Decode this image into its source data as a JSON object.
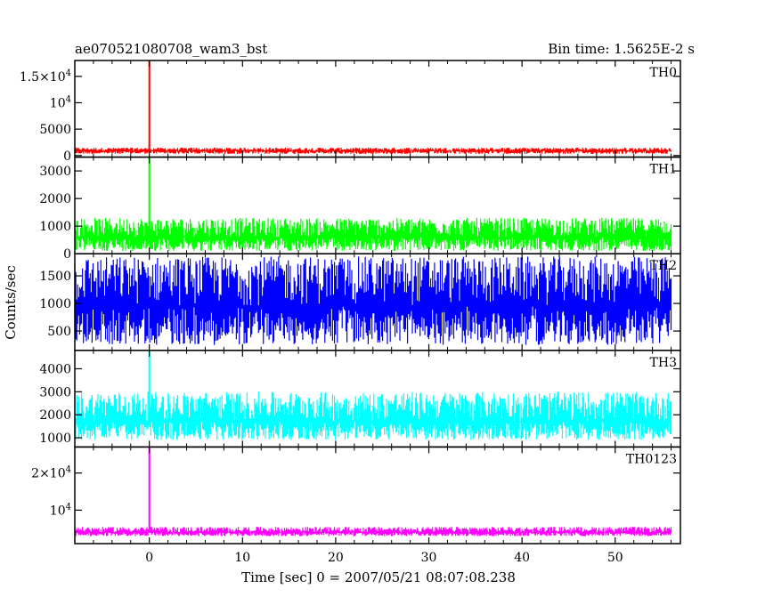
{
  "header": {
    "title": "ae070521080708_wam3_bst",
    "bin_time": "Bin time: 1.5625E-2 s"
  },
  "axes": {
    "ylabel": "Counts/sec",
    "xlabel": "Time [sec] 0 = 2007/05/21 08:07:08.238"
  },
  "colors": {
    "TH0": "#ff0000",
    "TH1": "#00ff00",
    "TH2": "#0000ff",
    "TH3": "#00ffff",
    "TH0123": "#ff00ff"
  },
  "chart_data": {
    "type": "line",
    "x_range": [
      -8,
      57
    ],
    "x_ticks": [
      0,
      10,
      20,
      30,
      40,
      50
    ],
    "x_tick_labels": [
      "0",
      "10",
      "20",
      "30",
      "40",
      "50"
    ],
    "data_x_range": [
      -8,
      56
    ],
    "bin_time_s": 0.015625,
    "panels": [
      {
        "name": "TH0",
        "ylim": [
          -300,
          18000
        ],
        "yticks": [
          0,
          5000,
          10000,
          15000
        ],
        "ytick_labels": [
          "0",
          "5000",
          "10^4",
          "1.5×10^4"
        ],
        "baseline_mean": 900,
        "noise_range": [
          300,
          1500
        ],
        "burst": {
          "time": 0.0,
          "peak": 18000
        }
      },
      {
        "name": "TH1",
        "ylim": [
          0,
          3500
        ],
        "yticks": [
          0,
          1000,
          2000,
          3000
        ],
        "ytick_labels": [
          "0",
          "1000",
          "2000",
          "3000"
        ],
        "baseline_mean": 600,
        "noise_range": [
          100,
          1300
        ],
        "burst": {
          "time": 0.0,
          "peak": 3500
        }
      },
      {
        "name": "TH2",
        "ylim": [
          150,
          1900
        ],
        "yticks": [
          500,
          1000,
          1500
        ],
        "ytick_labels": [
          "500",
          "1000",
          "1500"
        ],
        "baseline_mean": 950,
        "noise_range": [
          250,
          1850
        ],
        "burst": null
      },
      {
        "name": "TH3",
        "ylim": [
          600,
          4800
        ],
        "yticks": [
          1000,
          2000,
          3000,
          4000
        ],
        "ytick_labels": [
          "1000",
          "2000",
          "3000",
          "4000"
        ],
        "baseline_mean": 1700,
        "noise_range": [
          900,
          3000
        ],
        "burst": {
          "time": 0.0,
          "peak": 4800
        }
      },
      {
        "name": "TH0123",
        "ylim": [
          1000,
          27000
        ],
        "yticks": [
          10000,
          20000
        ],
        "ytick_labels": [
          "10^4",
          "2×10^4"
        ],
        "baseline_mean": 4000,
        "noise_range": [
          3000,
          5500
        ],
        "burst": {
          "time": 0.0,
          "peak": 27000
        }
      }
    ]
  }
}
